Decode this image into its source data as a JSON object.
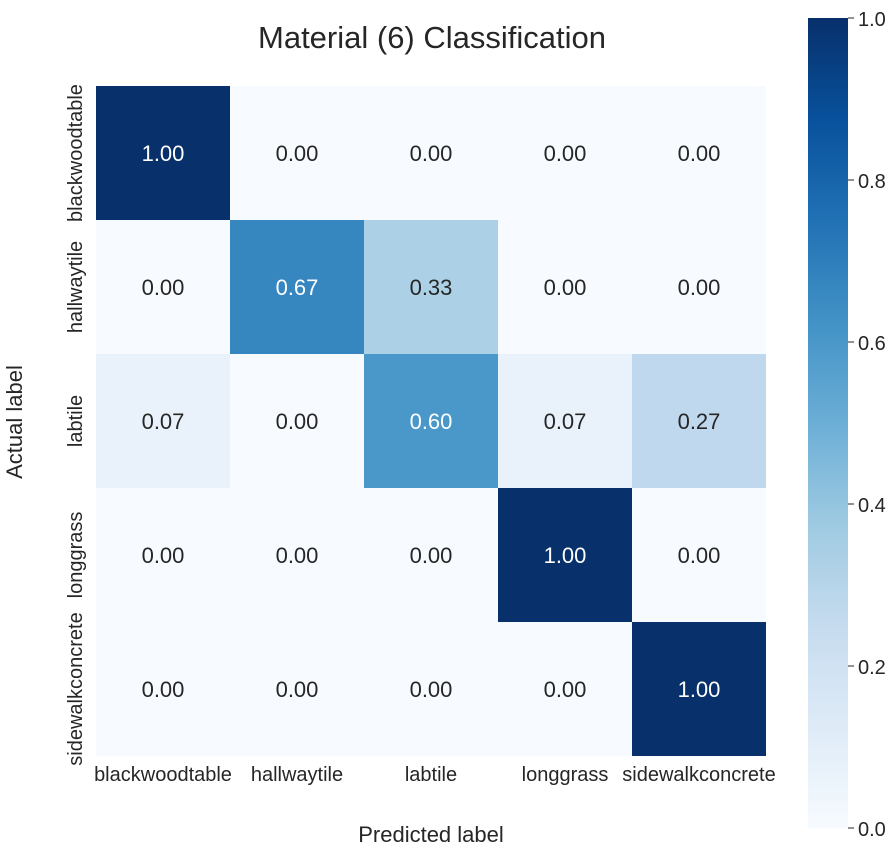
{
  "chart_data": {
    "type": "heatmap",
    "title": "Material (6) Classification",
    "xlabel": "Predicted label",
    "ylabel": "Actual label",
    "x_categories": [
      "blackwoodtable",
      "hallwaytile",
      "labtile",
      "longgrass",
      "sidewalkconcrete"
    ],
    "y_categories": [
      "blackwoodtable",
      "hallwaytile",
      "labtile",
      "longgrass",
      "sidewalkconcrete"
    ],
    "values": [
      [
        1.0,
        0.0,
        0.0,
        0.0,
        0.0
      ],
      [
        0.0,
        0.67,
        0.33,
        0.0,
        0.0
      ],
      [
        0.07,
        0.0,
        0.6,
        0.07,
        0.27
      ],
      [
        0.0,
        0.0,
        0.0,
        1.0,
        0.0
      ],
      [
        0.0,
        0.0,
        0.0,
        0.0,
        1.0
      ]
    ],
    "value_format": "0.00",
    "colormap": "Blues",
    "colorbar": {
      "range": [
        0.0,
        1.0
      ],
      "ticks": [
        0.0,
        0.2,
        0.4,
        0.6,
        0.8,
        1.0
      ],
      "tick_labels": [
        "0.0",
        "0.2",
        "0.4",
        "0.6",
        "0.8",
        "1.0"
      ]
    }
  }
}
